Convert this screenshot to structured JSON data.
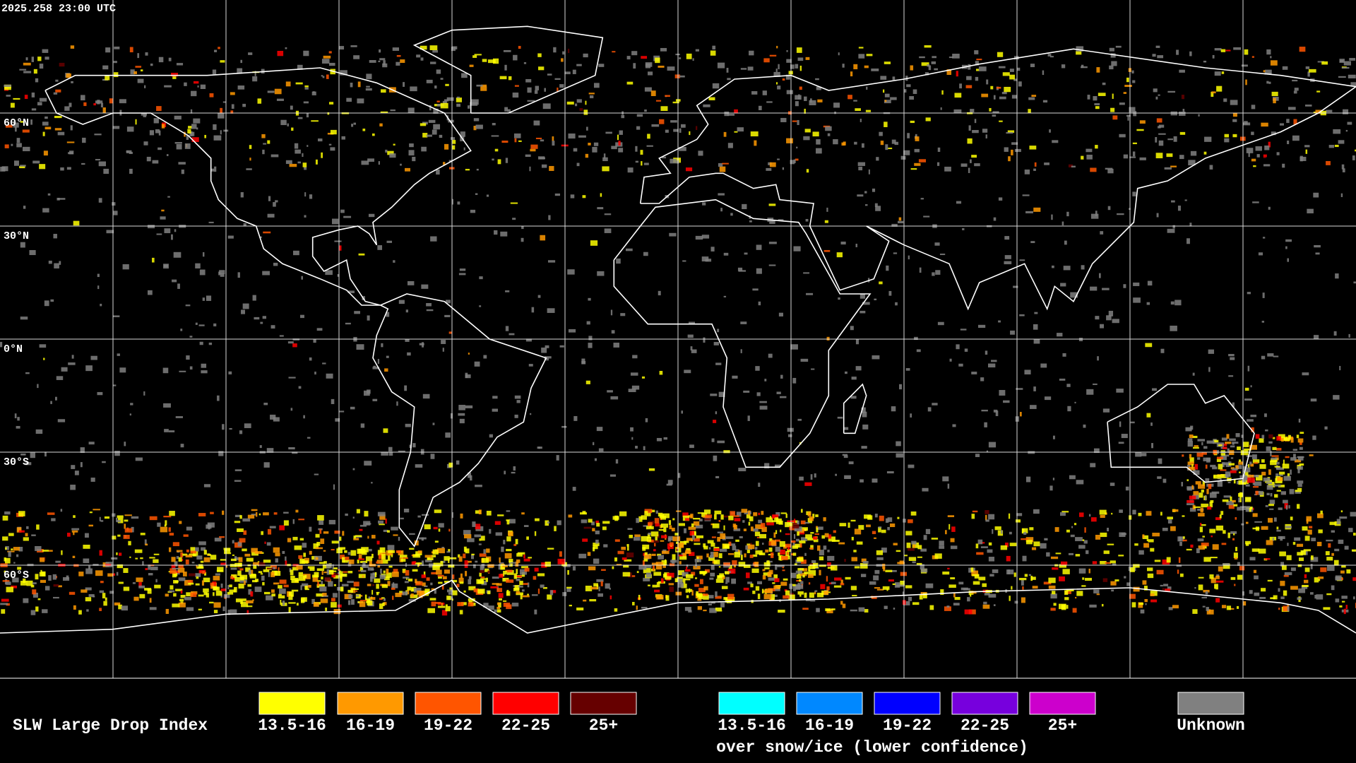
{
  "header": {
    "timestamp": "2025.258 23:00 UTC"
  },
  "map": {
    "latitude_labels": [
      "60°N",
      "30°N",
      "0°N",
      "30°S",
      "60°S"
    ]
  },
  "legend": {
    "title": "SLW Large Drop Index",
    "items": [
      {
        "label": "13.5-16",
        "color": "#ffff00"
      },
      {
        "label": "16-19",
        "color": "#ff9900"
      },
      {
        "label": "19-22",
        "color": "#ff5500"
      },
      {
        "label": "22-25",
        "color": "#ff0000"
      },
      {
        "label": "25+",
        "color": "#660000"
      }
    ],
    "snow_ice_items": [
      {
        "label": "13.5-16",
        "color": "#00ffff"
      },
      {
        "label": "16-19",
        "color": "#0088ff"
      },
      {
        "label": "19-22",
        "color": "#0000ff"
      },
      {
        "label": "22-25",
        "color": "#7700dd"
      },
      {
        "label": "25+",
        "color": "#cc00cc"
      }
    ],
    "snow_ice_caption": "over snow/ice (lower confidence)",
    "unknown": {
      "label": "Unknown",
      "color": "#808080"
    }
  }
}
